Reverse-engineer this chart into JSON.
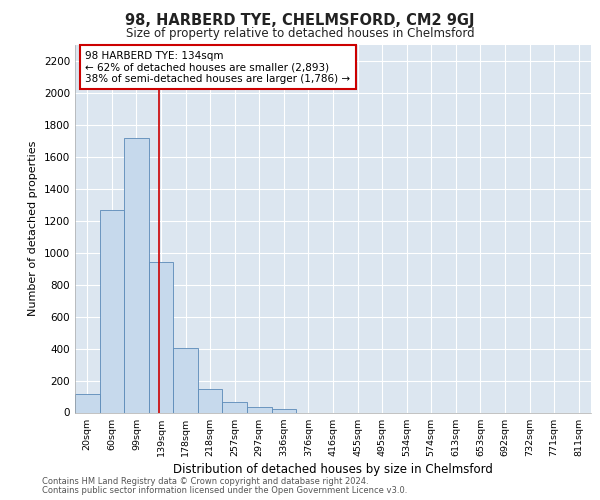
{
  "title": "98, HARBERD TYE, CHELMSFORD, CM2 9GJ",
  "subtitle": "Size of property relative to detached houses in Chelmsford",
  "xlabel": "Distribution of detached houses by size in Chelmsford",
  "ylabel": "Number of detached properties",
  "bar_color": "#c6d9ec",
  "bar_edge_color": "#5a8ab8",
  "background_color": "#dce6f0",
  "grid_color": "#ffffff",
  "categories": [
    "20sqm",
    "60sqm",
    "99sqm",
    "139sqm",
    "178sqm",
    "218sqm",
    "257sqm",
    "297sqm",
    "336sqm",
    "376sqm",
    "416sqm",
    "455sqm",
    "495sqm",
    "534sqm",
    "574sqm",
    "613sqm",
    "653sqm",
    "692sqm",
    "732sqm",
    "771sqm",
    "811sqm"
  ],
  "values": [
    115,
    1265,
    1720,
    940,
    405,
    150,
    68,
    35,
    22,
    0,
    0,
    0,
    0,
    0,
    0,
    0,
    0,
    0,
    0,
    0,
    0
  ],
  "ylim": [
    0,
    2300
  ],
  "yticks": [
    0,
    200,
    400,
    600,
    800,
    1000,
    1200,
    1400,
    1600,
    1800,
    2000,
    2200
  ],
  "annotation_line1": "98 HARBERD TYE: 134sqm",
  "annotation_line2": "← 62% of detached houses are smaller (2,893)",
  "annotation_line3": "38% of semi-detached houses are larger (1,786) →",
  "vline_color": "#cc0000",
  "annotation_box_facecolor": "#ffffff",
  "annotation_box_edgecolor": "#cc0000",
  "footer_line1": "Contains HM Land Registry data © Crown copyright and database right 2024.",
  "footer_line2": "Contains public sector information licensed under the Open Government Licence v3.0."
}
